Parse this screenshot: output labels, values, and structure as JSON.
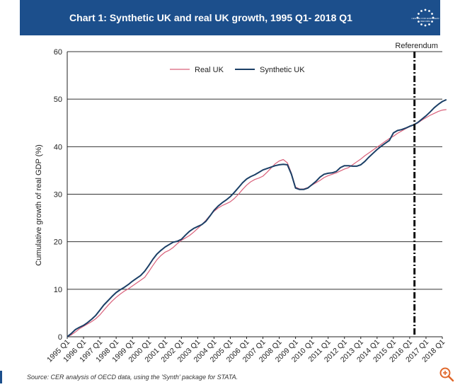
{
  "header": {
    "title": "Chart 1: Synthetic UK and real UK growth, 1995 Q1- 2018 Q1",
    "logo_text": "CENTRE FOR EUROPEAN REFORM"
  },
  "source_note": "Source: CER analysis of OECD data, using the 'Synth' package for STATA.",
  "colors": {
    "header_bg": "#1c4f8c",
    "real_uk": "#d9607a",
    "synthetic_uk": "#1b3f66"
  },
  "chart_data": {
    "type": "line",
    "title": "Chart 1: Synthetic UK and real UK growth, 1995 Q1- 2018 Q1",
    "xlabel": "",
    "ylabel": "Cumulative growth of real GDP (%)",
    "ylim": [
      0,
      60
    ],
    "yticks": [
      0,
      10,
      20,
      30,
      40,
      50,
      60
    ],
    "grid": true,
    "legend_position": "top-center",
    "annotation": {
      "label": "Referendum",
      "x": "2016 Q2"
    },
    "x_tick_labels": [
      "1995 Q1",
      "1996 Q1",
      "1997 Q1",
      "1998 Q1",
      "1999 Q1",
      "2000 Q1",
      "2001 Q1",
      "2002 Q1",
      "2003 Q1",
      "2004 Q1",
      "2005 Q1",
      "2006 Q1",
      "2007 Q1",
      "2008 Q1",
      "2009 Q1",
      "2010 Q1",
      "2011 Q1",
      "2012 Q1",
      "2013 Q1",
      "2014 Q1",
      "2015 Q1",
      "2016 Q1",
      "2017 Q1",
      "2018 Q1"
    ],
    "x_start": 1995.0,
    "x_end": 2018.0,
    "x_step": 0.25,
    "series": [
      {
        "name": "Real UK",
        "values": [
          0.0,
          0.4,
          1.0,
          1.7,
          2.2,
          2.7,
          3.2,
          3.8,
          4.6,
          5.6,
          6.6,
          7.5,
          8.3,
          9.0,
          9.6,
          10.1,
          10.7,
          11.3,
          11.9,
          12.5,
          13.7,
          15.0,
          16.2,
          17.1,
          17.8,
          18.2,
          18.8,
          19.6,
          20.3,
          20.8,
          21.3,
          22.0,
          22.8,
          23.6,
          24.5,
          25.5,
          26.4,
          27.1,
          27.6,
          28.0,
          28.4,
          29.1,
          30.0,
          31.0,
          31.9,
          32.6,
          33.1,
          33.4,
          33.8,
          34.6,
          35.5,
          36.4,
          37.0,
          37.3,
          36.6,
          34.4,
          31.5,
          31.1,
          31.1,
          31.4,
          31.9,
          32.4,
          32.9,
          33.5,
          33.9,
          34.2,
          34.5,
          34.9,
          35.3,
          35.6,
          36.2,
          36.8,
          37.4,
          38.1,
          38.7,
          39.3,
          39.9,
          40.5,
          41.1,
          41.7,
          42.2,
          42.8,
          43.3,
          43.8,
          44.2,
          44.6,
          45.0,
          45.6,
          46.1,
          46.6,
          47.0,
          47.4,
          47.7,
          47.8
        ]
      },
      {
        "name": "Synthetic UK",
        "values": [
          0.0,
          0.7,
          1.5,
          2.0,
          2.4,
          3.0,
          3.7,
          4.5,
          5.6,
          6.7,
          7.6,
          8.5,
          9.3,
          9.9,
          10.4,
          11.0,
          11.7,
          12.3,
          12.9,
          13.8,
          15.0,
          16.3,
          17.4,
          18.2,
          18.9,
          19.4,
          19.9,
          20.1,
          20.5,
          21.4,
          22.2,
          22.8,
          23.2,
          23.6,
          24.3,
          25.4,
          26.6,
          27.5,
          28.2,
          28.8,
          29.5,
          30.4,
          31.4,
          32.4,
          33.2,
          33.7,
          34.1,
          34.6,
          35.1,
          35.4,
          35.7,
          36.0,
          36.2,
          36.3,
          36.2,
          34.2,
          31.3,
          31.0,
          31.0,
          31.3,
          32.0,
          32.7,
          33.6,
          34.2,
          34.4,
          34.5,
          34.8,
          35.6,
          36.0,
          36.0,
          35.9,
          35.9,
          36.2,
          36.9,
          37.8,
          38.6,
          39.4,
          40.1,
          40.7,
          41.3,
          42.9,
          43.4,
          43.6,
          43.9,
          44.3,
          44.6,
          45.1,
          45.8,
          46.5,
          47.3,
          48.2,
          48.9,
          49.5,
          49.9
        ]
      }
    ]
  }
}
